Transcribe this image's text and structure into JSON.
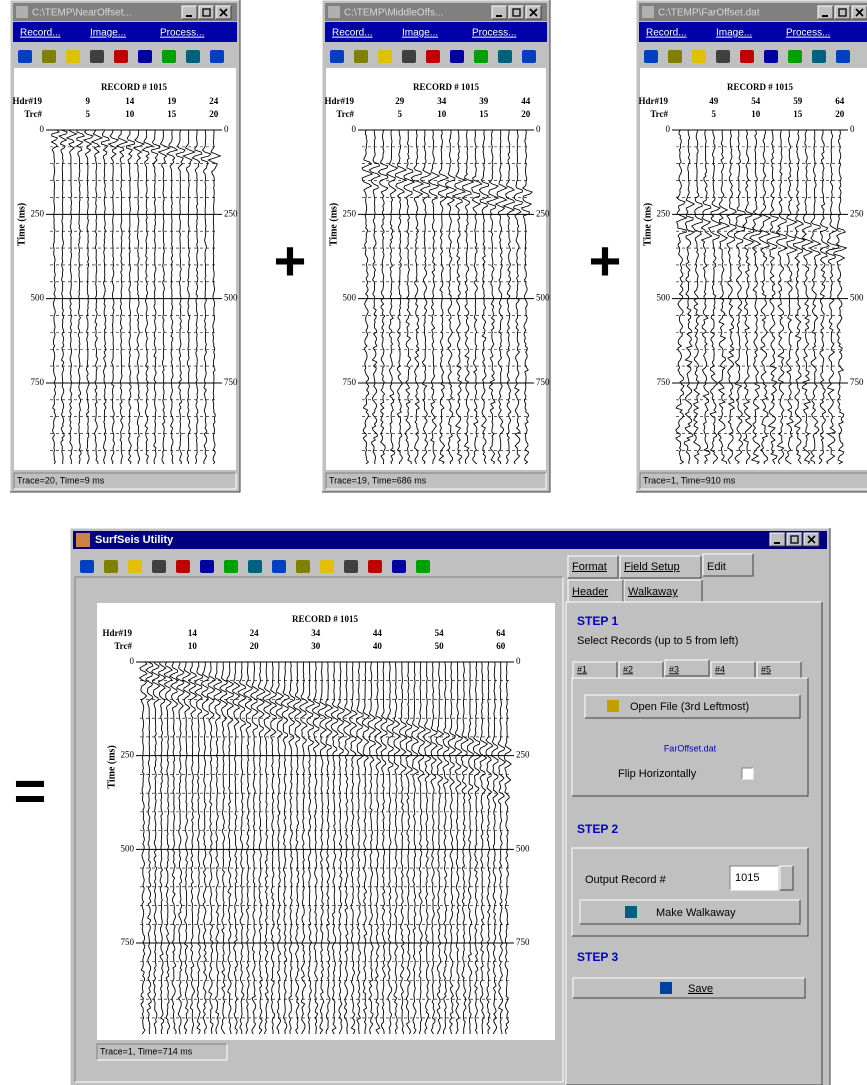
{
  "windows": [
    {
      "title": "C:\\TEMP\\NearOffset...",
      "menu": [
        "Record...",
        "Image...",
        "Process..."
      ],
      "record": "RECORD # 1015",
      "hdr_label": "Hdr#19",
      "hdr": [
        9,
        14,
        19,
        24
      ],
      "trc_label": "Trc#",
      "trc": [
        5,
        10,
        15,
        20
      ],
      "time_ticks": [
        0,
        250,
        500,
        750
      ],
      "y_label": "Time (ms)",
      "status": "Trace=20, Time=9 ms"
    },
    {
      "title": "C:\\TEMP\\MiddleOffs...",
      "menu": [
        "Record...",
        "Image...",
        "Process..."
      ],
      "record": "RECORD # 1015",
      "hdr_label": "Hdr#19",
      "hdr": [
        29,
        34,
        39,
        44
      ],
      "trc_label": "Trc#",
      "trc": [
        5,
        10,
        15,
        20
      ],
      "time_ticks": [
        0,
        250,
        500,
        750
      ],
      "y_label": "Time (ms)",
      "status": "Trace=19, Time=686 ms"
    },
    {
      "title": "C:\\TEMP\\FarOffset.dat",
      "menu": [
        "Record...",
        "Image...",
        "Process..."
      ],
      "record": "RECORD # 1015",
      "hdr_label": "Hdr#19",
      "hdr": [
        49,
        54,
        59,
        64
      ],
      "trc_label": "Trc#",
      "trc": [
        5,
        10,
        15,
        20
      ],
      "time_ticks": [
        0,
        250,
        500,
        750
      ],
      "y_label": "Time (ms)",
      "status": "Trace=1, Time=910 ms"
    }
  ],
  "operators": [
    "+",
    "+",
    "="
  ],
  "main": {
    "title": "SurfSeis Utility",
    "plot": {
      "record": "RECORD # 1015",
      "hdr_label": "Hdr#19",
      "hdr": [
        14,
        24,
        34,
        44,
        54,
        64
      ],
      "trc_label": "Trc#",
      "trc": [
        10,
        20,
        30,
        40,
        50,
        60
      ],
      "time_ticks": [
        0,
        250,
        500,
        750
      ],
      "y_label": "Time (ms)"
    },
    "status": "Trace=1, Time=714 ms",
    "tabs": [
      "Format",
      "Field Setup",
      "Edit"
    ],
    "subtabs": [
      "Header",
      "Walkaway"
    ],
    "step1": "STEP 1",
    "select": "Select Records (up to 5 from left)",
    "record_tabs": [
      "#1",
      "#2",
      "#3",
      "#4",
      "#5"
    ],
    "open_button": "Open File (3rd Leftmost)",
    "file": "FarOffset.dat",
    "flip": "Flip Horizontally",
    "step2": "STEP 2",
    "output_label": "Output Record #",
    "output_value": "1015",
    "make_button": "Make Walkaway",
    "step3": "STEP 3",
    "save_button": "Save"
  }
}
